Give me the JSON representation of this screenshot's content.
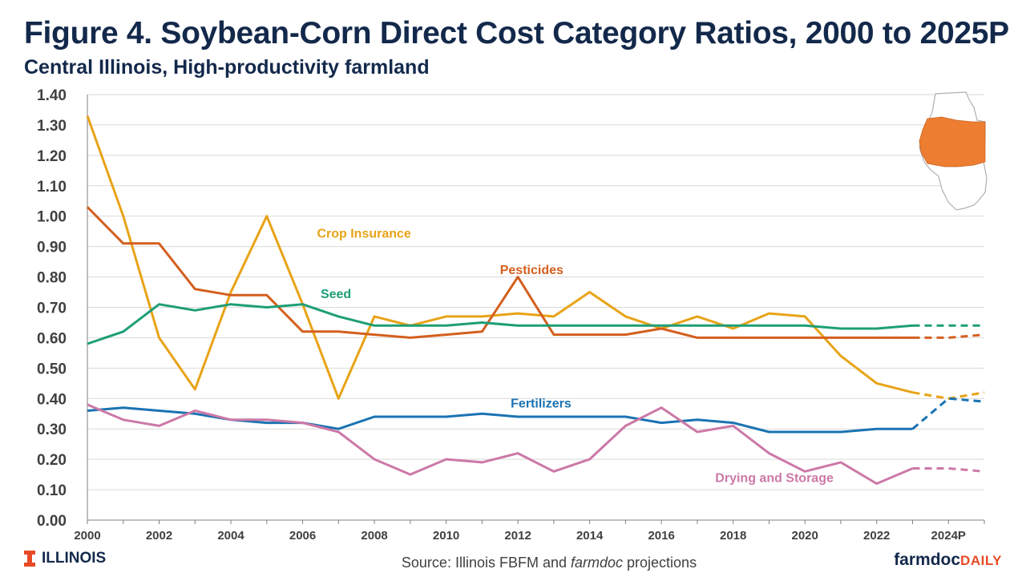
{
  "header": {
    "title": "Figure 4. Soybean-Corn Direct Cost Category Ratios, 2000 to 2025P",
    "subtitle": "Central Illinois, High-productivity farmland"
  },
  "footer": {
    "logo_text": "ILLINOIS",
    "source_prefix": "Source: Illinois FBFM and ",
    "source_italic": "farmdoc",
    "source_suffix": " projections",
    "brand_main": "farmdoc",
    "brand_accent": "DAILY"
  },
  "colors": {
    "navy": "#13294B",
    "orange": "#E84A27",
    "map_fill": "#ED7D31"
  },
  "chart_data": {
    "type": "line",
    "x": [
      2000,
      2001,
      2002,
      2003,
      2004,
      2005,
      2006,
      2007,
      2008,
      2009,
      2010,
      2011,
      2012,
      2013,
      2014,
      2015,
      2016,
      2017,
      2018,
      2019,
      2020,
      2021,
      2022,
      2023,
      2024,
      2025
    ],
    "x_tick_labels": [
      "2000",
      "2002",
      "2004",
      "2006",
      "2008",
      "2010",
      "2012",
      "2014",
      "2016",
      "2018",
      "2020",
      "2022",
      "2024P"
    ],
    "x_tick_values": [
      2000,
      2002,
      2004,
      2006,
      2008,
      2010,
      2012,
      2014,
      2016,
      2018,
      2020,
      2022,
      2024
    ],
    "ylim": [
      0,
      1.4
    ],
    "y_ticks": [
      "0.00",
      "0.10",
      "0.20",
      "0.30",
      "0.40",
      "0.50",
      "0.60",
      "0.70",
      "0.80",
      "0.90",
      "1.00",
      "1.10",
      "1.20",
      "1.30",
      "1.40"
    ],
    "projection_start": 2023,
    "grid": "horizontal",
    "series": [
      {
        "name": "Crop Insurance",
        "color": "#E8A317",
        "label_x": 2006.4,
        "label_y": 0.93,
        "values": [
          1.33,
          1.0,
          0.6,
          0.43,
          0.75,
          1.0,
          0.71,
          0.4,
          0.67,
          0.64,
          0.67,
          0.67,
          0.68,
          0.67,
          0.75,
          0.67,
          0.63,
          0.67,
          0.63,
          0.68,
          0.67,
          0.54,
          0.45,
          0.42,
          0.4,
          0.42
        ]
      },
      {
        "name": "Pesticides",
        "color": "#D45F1E",
        "label_x": 2011.5,
        "label_y": 0.81,
        "values": [
          1.03,
          0.91,
          0.91,
          0.76,
          0.74,
          0.74,
          0.62,
          0.62,
          0.61,
          0.6,
          0.61,
          0.62,
          0.8,
          0.61,
          0.61,
          0.61,
          0.63,
          0.6,
          0.6,
          0.6,
          0.6,
          0.6,
          0.6,
          0.6,
          0.6,
          0.61
        ]
      },
      {
        "name": "Seed",
        "color": "#1E9E77",
        "label_x": 2006.5,
        "label_y": 0.73,
        "values": [
          0.58,
          0.62,
          0.71,
          0.69,
          0.71,
          0.7,
          0.71,
          0.67,
          0.64,
          0.64,
          0.64,
          0.65,
          0.64,
          0.64,
          0.64,
          0.64,
          0.64,
          0.64,
          0.64,
          0.64,
          0.64,
          0.63,
          0.63,
          0.64,
          0.64,
          0.64
        ]
      },
      {
        "name": "Fertilizers",
        "color": "#1A73B2",
        "label_x": 2011.8,
        "label_y": 0.37,
        "values": [
          0.36,
          0.37,
          0.36,
          0.35,
          0.33,
          0.32,
          0.32,
          0.3,
          0.34,
          0.34,
          0.34,
          0.35,
          0.34,
          0.34,
          0.34,
          0.34,
          0.32,
          0.33,
          0.32,
          0.29,
          0.29,
          0.29,
          0.3,
          0.3,
          0.4,
          0.39
        ]
      },
      {
        "name": "Drying and Storage",
        "color": "#CC79A7",
        "label_x": 2017.5,
        "label_y": 0.125,
        "values": [
          0.38,
          0.33,
          0.31,
          0.36,
          0.33,
          0.33,
          0.32,
          0.29,
          0.2,
          0.15,
          0.2,
          0.19,
          0.22,
          0.16,
          0.2,
          0.31,
          0.37,
          0.29,
          0.31,
          0.22,
          0.16,
          0.19,
          0.12,
          0.17,
          0.17,
          0.16
        ]
      }
    ]
  }
}
